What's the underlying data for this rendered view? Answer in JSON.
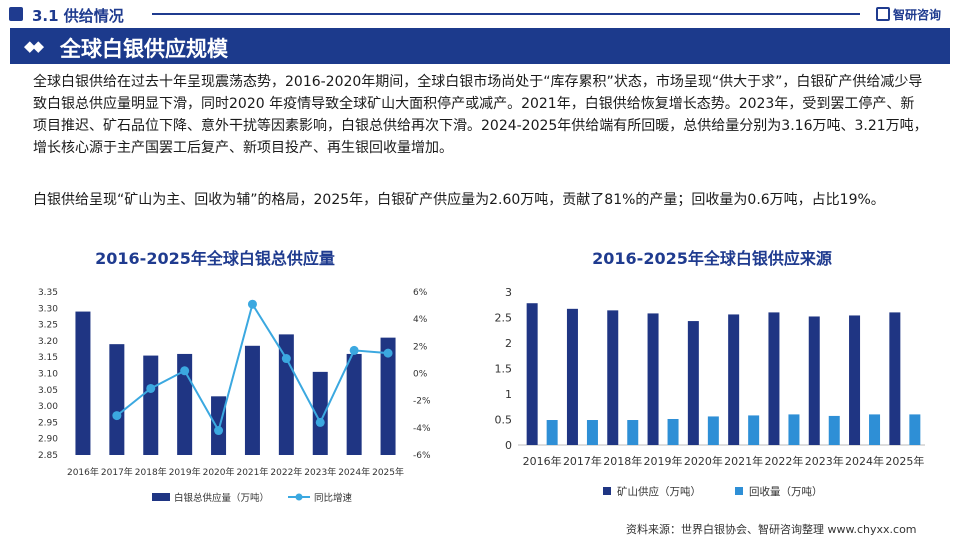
{
  "header": {
    "section": "3.1 供给情况",
    "logo": "智研咨询",
    "title": "全球白银供应规模"
  },
  "body": {
    "para1": "全球白银供给在过去十年呈现震荡态势，2016-2020年期间，全球白银市场尚处于“库存累积”状态，市场呈现“供大于求”，白银矿产供给减少导致白银总供应量明显下滑，同时2020 年疫情导致全球矿山大面积停产或减产。2021年，白银供给恢复增长态势。2023年，受到罢工停产、新项目推迟、矿石品位下降、意外干扰等因素影响，白银总供给再次下滑。2024-2025年供给端有所回暖，总供给量分别为3.16万吨、3.21万吨，增长核心源于主产国罢工后复产、新项目投产、再生银回收量增加。",
    "para2": "白银供给呈现“矿山为主、回收为辅”的格局，2025年，白银矿产供应量为2.60万吨，贡献了81%的产量；回收量为0.6万吨，占比19%。"
  },
  "footer": {
    "source": "资料来源：世界白银协会、智研咨询整理    www.chyxx.com"
  },
  "colors": {
    "navy": "#1c3a8c",
    "bar_dark": "#1f3583",
    "bar_light": "#2e8fd6",
    "line": "#3ba8e0",
    "title_blue": "#1f3b8f"
  },
  "chart_data": [
    {
      "type": "bar",
      "title": "2016-2025年全球白银总供应量",
      "categories": [
        "2016年",
        "2017年",
        "2018年",
        "2019年",
        "2020年",
        "2021年",
        "2022年",
        "2023年",
        "2024年",
        "2025年"
      ],
      "series": [
        {
          "name": "白银总供应量（万吨）",
          "type": "bar",
          "axis": "left",
          "values": [
            3.29,
            3.19,
            3.155,
            3.16,
            3.03,
            3.185,
            3.22,
            3.105,
            3.16,
            3.21
          ]
        },
        {
          "name": "同比增速",
          "type": "line",
          "axis": "right",
          "values": [
            null,
            -3.1,
            -1.1,
            0.2,
            -4.2,
            5.1,
            1.1,
            -3.6,
            1.7,
            1.5
          ]
        }
      ],
      "ylim": [
        2.85,
        3.35
      ],
      "yticks": [
        "2.85",
        "2.90",
        "2.95",
        "3.00",
        "3.05",
        "3.10",
        "3.15",
        "3.20",
        "3.25",
        "3.30",
        "3.35"
      ],
      "y2lim": [
        -6,
        6
      ],
      "y2ticks": [
        "-6%",
        "-4%",
        "-2%",
        "0%",
        "2%",
        "4%",
        "6%"
      ],
      "legend": "bottom"
    },
    {
      "type": "bar",
      "title": "2016-2025年全球白银供应来源",
      "categories": [
        "2016年",
        "2017年",
        "2018年",
        "2019年",
        "2020年",
        "2021年",
        "2022年",
        "2023年",
        "2024年",
        "2025年"
      ],
      "series": [
        {
          "name": "矿山供应（万吨）",
          "values": [
            2.78,
            2.67,
            2.64,
            2.58,
            2.43,
            2.56,
            2.6,
            2.52,
            2.54,
            2.6
          ]
        },
        {
          "name": "回收量（万吨）",
          "values": [
            0.49,
            0.49,
            0.49,
            0.51,
            0.56,
            0.58,
            0.6,
            0.57,
            0.6,
            0.6
          ]
        }
      ],
      "ylim": [
        0,
        3
      ],
      "yticks": [
        "0",
        "0.5",
        "1",
        "1.5",
        "2",
        "2.5",
        "3"
      ],
      "legend": "bottom"
    }
  ]
}
